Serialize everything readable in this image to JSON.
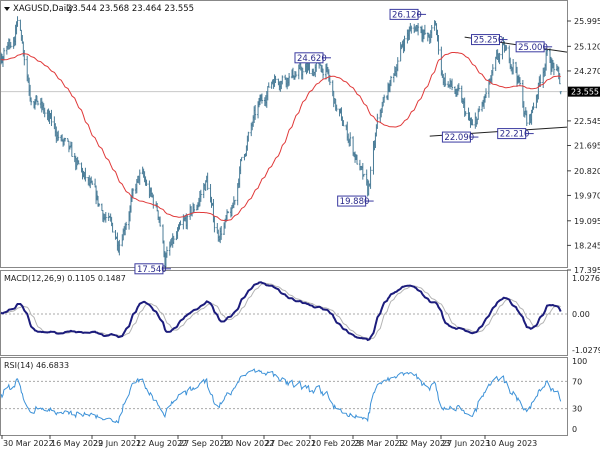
{
  "header": {
    "symbol": "XAGUSD,Daily",
    "ohlc": "23.544 23.568 23.464 23.555",
    "menu_icon": "triangle-down-icon"
  },
  "colors": {
    "bars": "#4b7d98",
    "ma": "#e03a3a",
    "macd_main": "#1c1c7c",
    "macd_signal": "#b4b4b4",
    "rsi": "#3d92d8",
    "annotation": "#3a3aa0",
    "trendline": "#222222"
  },
  "chart_data": [
    {
      "type": "ohlc",
      "symbol": "XAGUSD",
      "timeframe": "Daily",
      "y_ticks": [
        "25.995",
        "25.120",
        "24.270",
        "22.545",
        "21.695",
        "20.820",
        "19.970",
        "19.095",
        "18.245",
        "17.395"
      ],
      "ylim": [
        17.395,
        25.995
      ],
      "current_price": "23.555",
      "price_path": [
        [
          "2022-03-30",
          24.65
        ],
        [
          "2022-04-17",
          26.0
        ],
        [
          "2022-04-28",
          23.6
        ],
        [
          "2022-05-24",
          22.2
        ],
        [
          "2022-06-24",
          20.5
        ],
        [
          "2022-07-28",
          18.4
        ],
        [
          "2022-08-20",
          20.7
        ],
        [
          "2022-09-08",
          19.3
        ],
        [
          "2022-09-14",
          17.8
        ],
        [
          "2022-10-16",
          19.6
        ],
        [
          "2022-10-27",
          20.5
        ],
        [
          "2022-11-06",
          18.6
        ],
        [
          "2022-11-22",
          19.3
        ],
        [
          "2022-12-02",
          21.2
        ],
        [
          "2022-12-18",
          22.9
        ],
        [
          "2023-01-03",
          24.0
        ],
        [
          "2023-02-26",
          24.4
        ],
        [
          "2023-03-10",
          22.9
        ],
        [
          "2023-03-25",
          21.8
        ],
        [
          "2023-04-11",
          20.0
        ],
        [
          "2023-04-22",
          22.6
        ],
        [
          "2023-05-06",
          24.0
        ],
        [
          "2023-05-20",
          25.5
        ],
        [
          "2023-06-04",
          25.9
        ],
        [
          "2023-06-12",
          25.3
        ],
        [
          "2023-06-20",
          25.8
        ],
        [
          "2023-06-27",
          24.1
        ],
        [
          "2023-07-15",
          23.3
        ],
        [
          "2023-07-28",
          22.2
        ],
        [
          "2023-08-10",
          23.3
        ],
        [
          "2023-08-27",
          25.0
        ],
        [
          "2023-09-10",
          24.5
        ],
        [
          "2023-09-23",
          22.3
        ],
        [
          "2023-10-12",
          24.8
        ],
        [
          "2023-10-22",
          24.3
        ],
        [
          "2023-10-28",
          23.555
        ]
      ],
      "moving_average": "red line",
      "annotations": [
        {
          "label": "17.540",
          "date": "2022-09-14",
          "price": 17.54,
          "side": "below"
        },
        {
          "label": "19.880",
          "date": "2023-04-11",
          "price": 19.88,
          "side": "below"
        },
        {
          "label": "24.620",
          "date": "2023-02-26",
          "price": 24.62,
          "side": "above"
        },
        {
          "label": "26.120",
          "date": "2023-06-04",
          "price": 26.12,
          "side": "above"
        },
        {
          "label": "25.250",
          "date": "2023-08-27",
          "price": 25.25,
          "side": "above"
        },
        {
          "label": "25.000",
          "date": "2023-10-12",
          "price": 25.0,
          "side": "above"
        },
        {
          "label": "22.090",
          "date": "2023-07-28",
          "price": 22.09,
          "side": "below"
        },
        {
          "label": "22.210",
          "date": "2023-09-23",
          "price": 22.21,
          "side": "below"
        }
      ],
      "trendlines": [
        {
          "from": [
            "2023-07-20",
            25.44
          ],
          "to": [
            "2023-11-03",
            24.92
          ]
        },
        {
          "from": [
            "2023-06-14",
            22.02
          ],
          "to": [
            "2023-11-03",
            22.33
          ]
        }
      ]
    },
    {
      "type": "line",
      "title": "MACD(12,26,9) 0.1105 0.1487",
      "y_ticks": [
        "1.0276",
        "0.00",
        "-1.0279"
      ],
      "ylim": [
        -1.0279,
        1.0276
      ],
      "params": [
        12,
        26,
        9
      ]
    },
    {
      "type": "line",
      "title": "RSI(14) 46.6833",
      "y_ticks": [
        "100",
        "70",
        "30",
        "0"
      ],
      "ylim": [
        0,
        100
      ],
      "levels": [
        70,
        30
      ]
    }
  ],
  "x_ticks": [
    "30 Mar 2022",
    "16 May 2022",
    "29 Jun 2022",
    "12 Aug 2022",
    "27 Sep 2022",
    "10 Nov 2022",
    "27 Dec 2022",
    "10 Feb 2023",
    "28 Mar 2023",
    "12 May 2023",
    "27 Jun 2023",
    "10 Aug 2023"
  ]
}
